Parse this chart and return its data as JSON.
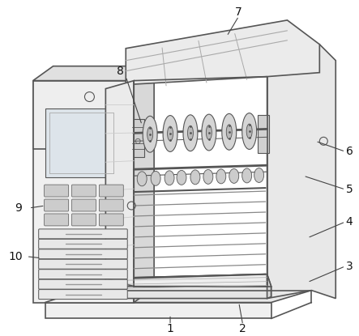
{
  "background": "#ffffff",
  "line_color": "#555555",
  "line_width": 1.2,
  "fill_main": "#f2f2f2",
  "fill_side": "#e0e0e0",
  "fill_top": "#e8e8e8",
  "fill_dark": "#d0d0d0",
  "fill_screen": "#dde4ea",
  "label_fontsize": 10,
  "label_color": "#111111",
  "roller_count": 7,
  "blade_count": 9,
  "shelf_count": 6,
  "drawer_count": 7
}
